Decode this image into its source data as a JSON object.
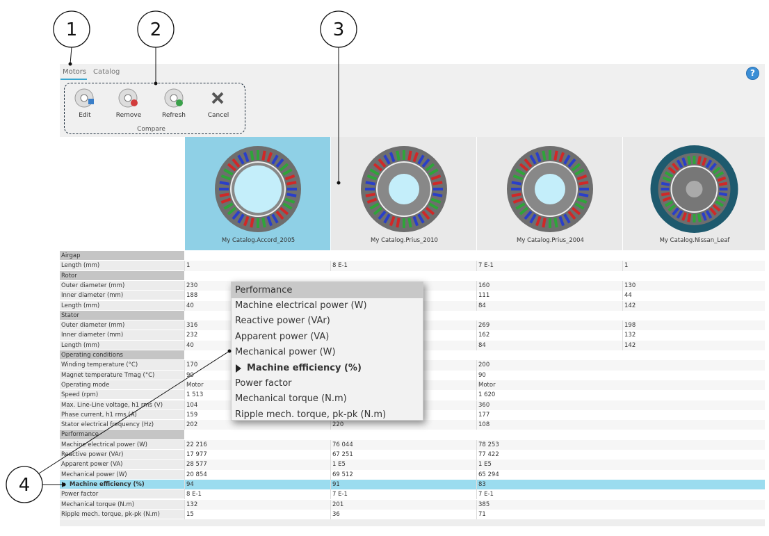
{
  "callouts": [
    "1",
    "2",
    "3",
    "4"
  ],
  "tabs": [
    "Motors",
    "Catalog"
  ],
  "help": "?",
  "toolbar": {
    "buttons": [
      "Edit",
      "Remove",
      "Refresh",
      "Cancel"
    ],
    "group": "Compare"
  },
  "motors": [
    "My Catalog.Accord_2005",
    "My Catalog.Prius_2010",
    "My Catalog.Prius_2004",
    "My Catalog.Nissan_Leaf"
  ],
  "table": {
    "rows": [
      {
        "label": "Airgap",
        "section": true
      },
      {
        "label": "Length (mm)",
        "values": [
          "1",
          "8 E-1",
          "7 E-1",
          "1"
        ]
      },
      {
        "label": "Rotor",
        "section": true
      },
      {
        "label": "Outer diameter (mm)",
        "values": [
          "230",
          null,
          "160",
          "130"
        ]
      },
      {
        "label": "Inner diameter (mm)",
        "values": [
          "188",
          null,
          "111",
          "44"
        ]
      },
      {
        "label": "Length (mm)",
        "values": [
          "40",
          null,
          "84",
          "142"
        ]
      },
      {
        "label": "Stator",
        "section": true
      },
      {
        "label": "Outer diameter (mm)",
        "values": [
          "316",
          null,
          "269",
          "198"
        ]
      },
      {
        "label": "Inner diameter (mm)",
        "values": [
          "232",
          null,
          "162",
          "132"
        ]
      },
      {
        "label": "Length (mm)",
        "values": [
          "40",
          null,
          "84",
          "142"
        ]
      },
      {
        "label": "Operating conditions",
        "section": true
      },
      {
        "label": "Winding temperature (°C)",
        "values": [
          "170",
          null,
          "200",
          null
        ]
      },
      {
        "label": "Magnet temperature Tmag (°C)",
        "values": [
          "90",
          null,
          "90",
          null
        ]
      },
      {
        "label": "Operating mode",
        "values": [
          "Motor",
          null,
          "Motor",
          null
        ]
      },
      {
        "label": "Speed (rpm)",
        "values": [
          "1 513",
          null,
          "1 620",
          null
        ]
      },
      {
        "label": "Max. Line-Line voltage, h1 rms (V)",
        "values": [
          "104",
          null,
          "360",
          null
        ]
      },
      {
        "label": "Phase current, h1 rms (A)",
        "values": [
          "159",
          null,
          "177",
          null
        ]
      },
      {
        "label": "Stator electrical frequency (Hz)",
        "values": [
          "202",
          "220",
          "108",
          null
        ]
      },
      {
        "label": "Performance",
        "section": true
      },
      {
        "label": "Machine electrical power (W)",
        "values": [
          "22 216",
          "76 044",
          "78 253",
          null
        ]
      },
      {
        "label": "Reactive power (VAr)",
        "values": [
          "17 977",
          "67 251",
          "77 422",
          null
        ]
      },
      {
        "label": "Apparent power (VA)",
        "values": [
          "28 577",
          "1 E5",
          "1 E5",
          null
        ]
      },
      {
        "label": "Mechanical power (W)",
        "values": [
          "20 854",
          "69 512",
          "65 294",
          null
        ]
      },
      {
        "label": "Machine efficiency (%)",
        "values": [
          "94",
          "91",
          "83",
          null
        ],
        "selected": true
      },
      {
        "label": "Power factor",
        "values": [
          "8 E-1",
          "7 E-1",
          "7 E-1",
          null
        ]
      },
      {
        "label": "Mechanical torque (N.m)",
        "values": [
          "132",
          "201",
          "385",
          null
        ]
      },
      {
        "label": "Ripple mech. torque, pk-pk (N.m)",
        "values": [
          "15",
          "36",
          "71",
          null
        ]
      }
    ]
  },
  "popup": {
    "header": "Performance",
    "items": [
      {
        "label": "Machine electrical power (W)"
      },
      {
        "label": "Reactive power (VAr)"
      },
      {
        "label": "Apparent power (VA)"
      },
      {
        "label": "Mechanical power (W)"
      },
      {
        "label": "Machine efficiency (%)",
        "selected": true
      },
      {
        "label": "Power factor"
      },
      {
        "label": "Mechanical torque (N.m)"
      },
      {
        "label": "Ripple mech. torque, pk-pk (N.m)"
      }
    ]
  }
}
